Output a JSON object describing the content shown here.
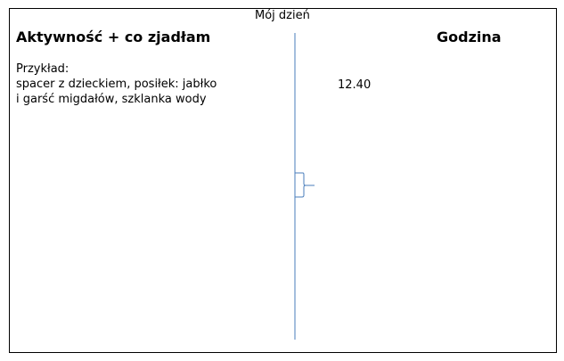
{
  "title": "Mój dzień",
  "columns": {
    "activity": "Aktywność + co zjadłam",
    "time": "Godzina"
  },
  "example": {
    "label": "Przykład:",
    "lines": [
      "spacer z dzieckiem, posiłek: jabłko",
      "i garść migdałów, szklanka wody"
    ],
    "time": "12.40"
  },
  "colors": {
    "timeline": "#4a7ebb"
  }
}
